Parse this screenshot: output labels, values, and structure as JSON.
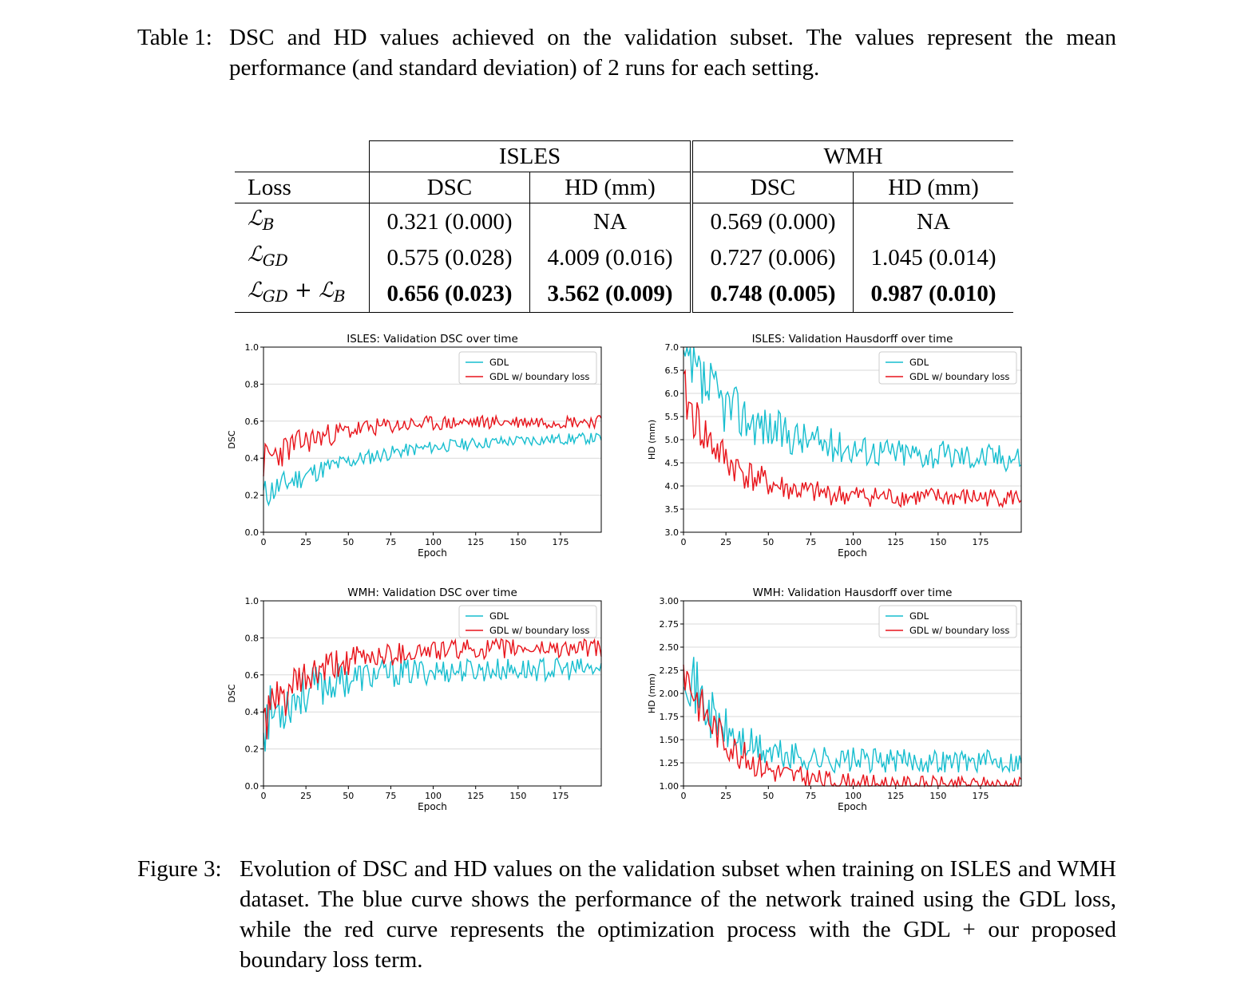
{
  "table_caption": {
    "label": "Table 1:",
    "text": "DSC and HD values achieved on the validation subset. The values represent the mean performance (and standard deviation) of 2 runs for each setting."
  },
  "table": {
    "groups": [
      "ISLES",
      "WMH"
    ],
    "col_loss": "Loss",
    "cols": [
      "DSC",
      "HD (mm)",
      "DSC",
      "HD (mm)"
    ],
    "rows": [
      {
        "loss_main": "ℒ",
        "loss_sub": "B",
        "loss_extra": "",
        "loss_main2": "",
        "loss_sub2": "",
        "values": [
          "0.321 (0.000)",
          "NA",
          "0.569 (0.000)",
          "NA"
        ],
        "bold": false
      },
      {
        "loss_main": "ℒ",
        "loss_sub": "GD",
        "loss_extra": "",
        "loss_main2": "",
        "loss_sub2": "",
        "values": [
          "0.575 (0.028)",
          "4.009 (0.016)",
          "0.727 (0.006)",
          "1.045 (0.014)"
        ],
        "bold": false
      },
      {
        "loss_main": "ℒ",
        "loss_sub": "GD",
        "loss_extra": " + ",
        "loss_main2": "ℒ",
        "loss_sub2": "B",
        "values": [
          "0.656 (0.023)",
          "3.562 (0.009)",
          "0.748 (0.005)",
          "0.987 (0.010)"
        ],
        "bold": true
      }
    ]
  },
  "figure_caption": {
    "label": "Figure 3:",
    "text": "Evolution of DSC and HD values on the validation subset when training on ISLES and WMH dataset. The blue curve shows the performance of the network trained using the GDL loss, while the red curve represents the optimization process with the GDL + our proposed boundary loss term."
  },
  "colors": {
    "gdl": "#17becf",
    "boundary": "#e8141b"
  },
  "chart_data": [
    {
      "type": "line",
      "title": "ISLES: Validation DSC over time",
      "xlabel": "Epoch",
      "ylabel": "DSC",
      "xlim": [
        0,
        199
      ],
      "ylim": [
        0.0,
        1.0
      ],
      "xticks": [
        0,
        25,
        50,
        75,
        100,
        125,
        150,
        175
      ],
      "yticks": [
        0.0,
        0.2,
        0.4,
        0.6,
        0.8,
        1.0
      ],
      "ytick_labels": [
        "0.0",
        "0.2",
        "0.4",
        "0.6",
        "0.8",
        "1.0"
      ],
      "grid": true,
      "legend": "top-right",
      "series": [
        {
          "name": "GDL",
          "start": 0.2,
          "end": 0.52,
          "tau": 60,
          "noise": 0.03,
          "seed": 11
        },
        {
          "name": "GDL w/ boundary loss",
          "start": 0.38,
          "end": 0.6,
          "tau": 35,
          "noise": 0.035,
          "seed": 23
        }
      ]
    },
    {
      "type": "line",
      "title": "ISLES: Validation Hausdorff over time",
      "xlabel": "Epoch",
      "ylabel": "HD (mm)",
      "xlim": [
        0,
        199
      ],
      "ylim": [
        3.0,
        7.0
      ],
      "xticks": [
        0,
        25,
        50,
        75,
        100,
        125,
        150,
        175
      ],
      "yticks": [
        3.0,
        3.5,
        4.0,
        4.5,
        5.0,
        5.5,
        6.0,
        6.5,
        7.0
      ],
      "ytick_labels": [
        "3.0",
        "3.5",
        "4.0",
        "4.5",
        "5.0",
        "5.5",
        "6.0",
        "6.5",
        "7.0"
      ],
      "grid": true,
      "legend": "top-right",
      "series": [
        {
          "name": "GDL",
          "start": 6.6,
          "end": 4.6,
          "tau": 45,
          "noise": 0.3,
          "seed": 37
        },
        {
          "name": "GDL w/ boundary loss",
          "start": 6.0,
          "end": 3.75,
          "tau": 25,
          "noise": 0.2,
          "seed": 41
        }
      ]
    },
    {
      "type": "line",
      "title": "WMH: Validation DSC over time",
      "xlabel": "Epoch",
      "ylabel": "DSC",
      "xlim": [
        0,
        199
      ],
      "ylim": [
        0.0,
        1.0
      ],
      "xticks": [
        0,
        25,
        50,
        75,
        100,
        125,
        150,
        175
      ],
      "yticks": [
        0.0,
        0.2,
        0.4,
        0.6,
        0.8,
        1.0
      ],
      "ytick_labels": [
        "0.0",
        "0.2",
        "0.4",
        "0.6",
        "0.8",
        "1.0"
      ],
      "grid": true,
      "legend": "top-right",
      "series": [
        {
          "name": "GDL",
          "start": 0.35,
          "end": 0.63,
          "tau": 30,
          "noise": 0.06,
          "seed": 53
        },
        {
          "name": "GDL w/ boundary loss",
          "start": 0.35,
          "end": 0.745,
          "tau": 30,
          "noise": 0.05,
          "seed": 61
        }
      ]
    },
    {
      "type": "line",
      "title": "WMH: Validation Hausdorff over time",
      "xlabel": "Epoch",
      "ylabel": "HD (mm)",
      "xlim": [
        0,
        199
      ],
      "ylim": [
        1.0,
        3.0
      ],
      "xticks": [
        0,
        25,
        50,
        75,
        100,
        125,
        150,
        175
      ],
      "yticks": [
        1.0,
        1.25,
        1.5,
        1.75,
        2.0,
        2.25,
        2.5,
        2.75,
        3.0
      ],
      "ytick_labels": [
        "1.00",
        "1.25",
        "1.50",
        "1.75",
        "2.00",
        "2.25",
        "2.50",
        "2.75",
        "3.00"
      ],
      "grid": true,
      "legend": "top-right",
      "series": [
        {
          "name": "GDL",
          "start": 2.4,
          "end": 1.27,
          "tau": 20,
          "noise": 0.12,
          "seed": 71
        },
        {
          "name": "GDL w/ boundary loss",
          "start": 2.3,
          "end": 1.01,
          "tau": 25,
          "noise": 0.09,
          "seed": 83
        }
      ]
    }
  ]
}
